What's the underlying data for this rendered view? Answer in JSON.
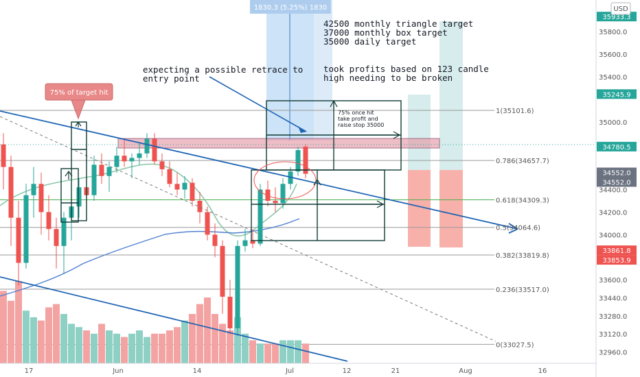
{
  "top_measure_label": "1830.3 (5.25%) 1830",
  "currency_badge": "USD",
  "annotations": {
    "targets_line1": "42500 monthly triangle target",
    "targets_line2": "37000 monthly box target",
    "targets_line3": "35000 daily target",
    "took_profits_line1": "took profits based on 123 candle",
    "took_profits_line2": "high needing to be broken",
    "retrace_line1": "expecting a possible retrace to",
    "retrace_line2": "entry point",
    "callout": "75% of target hit",
    "box_note_line1": "75% once hit",
    "box_note_line2": "take profit and",
    "box_note_line3": "raise stop 35000"
  },
  "colors": {
    "up": "#26a69a",
    "down": "#ef5350",
    "trendline": "#1e64b4",
    "ema_fast": "#8cc7a8",
    "ema_slow": "#4f7fd1",
    "callout_bg": "#e57373",
    "fib_green": "#4caf50",
    "highlight_band": "#e59aa8"
  },
  "chart_data": {
    "type": "candlestick",
    "y_axis": {
      "ticks": [
        32960,
        33120,
        33280,
        33440,
        33600,
        34000,
        34200,
        34400,
        35000,
        35400,
        35600,
        35800
      ],
      "range": [
        32860,
        36080
      ]
    },
    "x_axis": {
      "ticks": [
        "17",
        "Jun",
        "14",
        "Jul",
        "12",
        "21",
        "Aug",
        "16"
      ]
    },
    "fib_levels": [
      {
        "label": "1(35101.6)",
        "value": 35101.6
      },
      {
        "label": "0.786(34657.7)",
        "value": 34657.7
      },
      {
        "label": "0.618(34309.3)",
        "value": 34309.3
      },
      {
        "label": "0.5(34064.6)",
        "value": 34064.6
      },
      {
        "label": "0.382(33819.8)",
        "value": 33819.8
      },
      {
        "label": "0.236(33517.0)",
        "value": 33517.0
      },
      {
        "label": "0(33027.5)",
        "value": 33027.5
      }
    ],
    "price_badges": [
      {
        "label": "35933.3",
        "value": 35933.3,
        "color": "#26a69a"
      },
      {
        "label": "35245.9",
        "value": 35245.9,
        "color": "#26a69a"
      },
      {
        "label": "34780.5",
        "value": 34780.5,
        "color": "#26a69a"
      },
      {
        "label": "34552.0",
        "value": 34552.0,
        "color": "#6b7280"
      },
      {
        "label": "34552.0",
        "value": 34552.0,
        "color": "#6b7280"
      },
      {
        "label": "33861.8",
        "value": 33861.8,
        "color": "#ef5350"
      },
      {
        "label": "33853.9",
        "value": 33853.9,
        "color": "#ef5350"
      }
    ],
    "candles": [
      {
        "o": 34800,
        "h": 34900,
        "l": 34400,
        "c": 34600
      },
      {
        "o": 34600,
        "h": 34700,
        "l": 33900,
        "c": 34150
      },
      {
        "o": 34150,
        "h": 34300,
        "l": 33550,
        "c": 33750
      },
      {
        "o": 33750,
        "h": 34450,
        "l": 33700,
        "c": 34350
      },
      {
        "o": 34350,
        "h": 34600,
        "l": 34150,
        "c": 34450
      },
      {
        "o": 34450,
        "h": 34550,
        "l": 34000,
        "c": 34200
      },
      {
        "o": 34200,
        "h": 34350,
        "l": 33950,
        "c": 34050
      },
      {
        "o": 34050,
        "h": 34150,
        "l": 33700,
        "c": 33900
      },
      {
        "o": 33900,
        "h": 34200,
        "l": 33650,
        "c": 34150
      },
      {
        "o": 34150,
        "h": 34300,
        "l": 33950,
        "c": 34250
      },
      {
        "o": 34250,
        "h": 34500,
        "l": 34150,
        "c": 34420
      },
      {
        "o": 34420,
        "h": 34550,
        "l": 34300,
        "c": 34350
      },
      {
        "o": 34350,
        "h": 34700,
        "l": 34300,
        "c": 34620
      },
      {
        "o": 34620,
        "h": 34720,
        "l": 34450,
        "c": 34520
      },
      {
        "o": 34520,
        "h": 34650,
        "l": 34380,
        "c": 34600
      },
      {
        "o": 34600,
        "h": 34780,
        "l": 34550,
        "c": 34700
      },
      {
        "o": 34700,
        "h": 34850,
        "l": 34600,
        "c": 34650
      },
      {
        "o": 34650,
        "h": 34720,
        "l": 34500,
        "c": 34680
      },
      {
        "o": 34680,
        "h": 34820,
        "l": 34620,
        "c": 34720
      },
      {
        "o": 34720,
        "h": 34900,
        "l": 34680,
        "c": 34850
      },
      {
        "o": 34850,
        "h": 34900,
        "l": 34620,
        "c": 34650
      },
      {
        "o": 34650,
        "h": 34720,
        "l": 34520,
        "c": 34580
      },
      {
        "o": 34580,
        "h": 34650,
        "l": 34420,
        "c": 34450
      },
      {
        "o": 34450,
        "h": 34550,
        "l": 34350,
        "c": 34400
      },
      {
        "o": 34400,
        "h": 34520,
        "l": 34320,
        "c": 34460
      },
      {
        "o": 34460,
        "h": 34500,
        "l": 34250,
        "c": 34300
      },
      {
        "o": 34300,
        "h": 34380,
        "l": 34100,
        "c": 34200
      },
      {
        "o": 34200,
        "h": 34250,
        "l": 33950,
        "c": 34000
      },
      {
        "o": 34000,
        "h": 34100,
        "l": 33800,
        "c": 33900
      },
      {
        "o": 33900,
        "h": 33950,
        "l": 33300,
        "c": 33450
      },
      {
        "o": 33450,
        "h": 33600,
        "l": 33120,
        "c": 33170
      },
      {
        "o": 33170,
        "h": 33950,
        "l": 33100,
        "c": 33900
      },
      {
        "o": 33900,
        "h": 34050,
        "l": 33850,
        "c": 33950
      },
      {
        "o": 33950,
        "h": 34050,
        "l": 33880,
        "c": 33920
      },
      {
        "o": 33920,
        "h": 34450,
        "l": 33900,
        "c": 34400
      },
      {
        "o": 34400,
        "h": 34480,
        "l": 34250,
        "c": 34300
      },
      {
        "o": 34300,
        "h": 34420,
        "l": 34200,
        "c": 34280
      },
      {
        "o": 34280,
        "h": 34500,
        "l": 34230,
        "c": 34450
      },
      {
        "o": 34450,
        "h": 34600,
        "l": 34400,
        "c": 34560
      },
      {
        "o": 34560,
        "h": 34780,
        "l": 34520,
        "c": 34750
      },
      {
        "o": 34780,
        "h": 34800,
        "l": 34500,
        "c": 34540
      }
    ],
    "volumes": [
      22,
      19,
      25,
      16,
      14,
      13,
      17,
      18,
      15,
      12,
      11,
      10,
      9,
      12,
      10,
      9,
      8,
      9,
      10,
      8,
      9,
      9,
      10,
      11,
      13,
      15,
      18,
      20,
      15,
      12,
      10,
      14,
      9,
      7,
      6,
      6,
      6,
      7,
      7,
      7,
      6
    ]
  }
}
